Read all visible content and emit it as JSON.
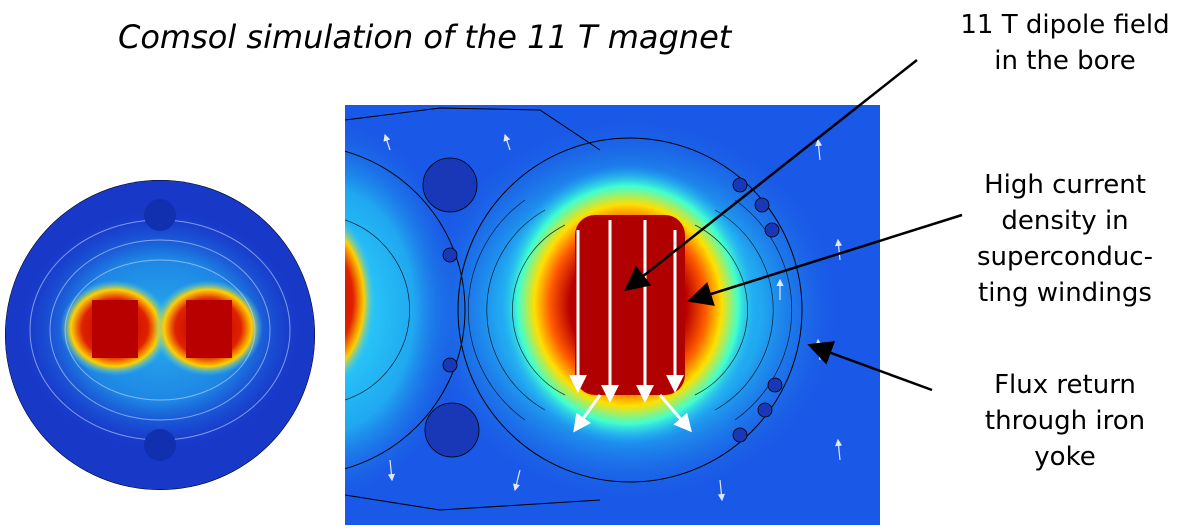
{
  "title": "Comsol simulation of the 11 T magnet",
  "annotations": [
    {
      "lines": [
        "11 T dipole field",
        "in the bore"
      ]
    },
    {
      "lines": [
        "High current",
        "density in",
        "superconduc-",
        "ting windings"
      ]
    },
    {
      "lines": [
        "Flux return",
        "through iron",
        "yoke"
      ]
    }
  ]
}
